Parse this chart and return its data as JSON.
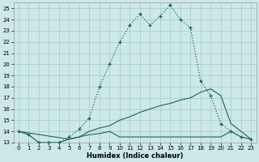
{
  "xlabel": "Humidex (Indice chaleur)",
  "bg_color": "#cde8e8",
  "grid_color": "#a8d0c8",
  "line_color": "#1a6655",
  "xlim": [
    -0.5,
    23.5
  ],
  "ylim": [
    13,
    25.5
  ],
  "xticks": [
    0,
    1,
    2,
    3,
    4,
    5,
    6,
    7,
    8,
    9,
    10,
    11,
    12,
    13,
    14,
    15,
    16,
    17,
    18,
    19,
    20,
    21,
    22,
    23
  ],
  "yticks": [
    13,
    14,
    15,
    16,
    17,
    18,
    19,
    20,
    21,
    22,
    23,
    24,
    25
  ],
  "curve1_x": [
    0,
    1,
    2,
    3,
    4,
    5,
    6,
    7,
    8,
    9,
    10,
    11,
    12,
    13,
    14,
    15,
    16,
    17,
    18,
    19,
    20,
    21,
    22,
    23
  ],
  "curve1_y": [
    14.0,
    13.7,
    13.0,
    13.0,
    13.0,
    13.5,
    14.2,
    15.2,
    18.0,
    20.0,
    22.0,
    23.5,
    24.5,
    23.5,
    24.3,
    25.3,
    24.0,
    23.3,
    18.5,
    17.2,
    14.7,
    14.0,
    13.5,
    13.3
  ],
  "line_flat_x": [
    0,
    1,
    2,
    3,
    4,
    5,
    6,
    7,
    8,
    9,
    10,
    11,
    12,
    13,
    14,
    15,
    16,
    17,
    18,
    19,
    20,
    21,
    22,
    23
  ],
  "line_flat_y": [
    14.0,
    13.7,
    13.0,
    13.0,
    13.0,
    13.3,
    13.5,
    13.7,
    13.8,
    14.0,
    13.5,
    13.5,
    13.5,
    13.5,
    13.5,
    13.5,
    13.5,
    13.5,
    13.5,
    13.5,
    13.5,
    14.0,
    13.5,
    13.3
  ],
  "line_rise_x": [
    0,
    5,
    6,
    7,
    8,
    9,
    10,
    11,
    12,
    13,
    14,
    15,
    16,
    17,
    18,
    19,
    20,
    21,
    22,
    23
  ],
  "line_rise_y": [
    14.0,
    13.3,
    13.5,
    14.0,
    14.3,
    14.5,
    15.0,
    15.3,
    15.7,
    16.0,
    16.3,
    16.5,
    16.8,
    17.0,
    17.5,
    17.8,
    17.2,
    14.7,
    14.0,
    13.3
  ]
}
